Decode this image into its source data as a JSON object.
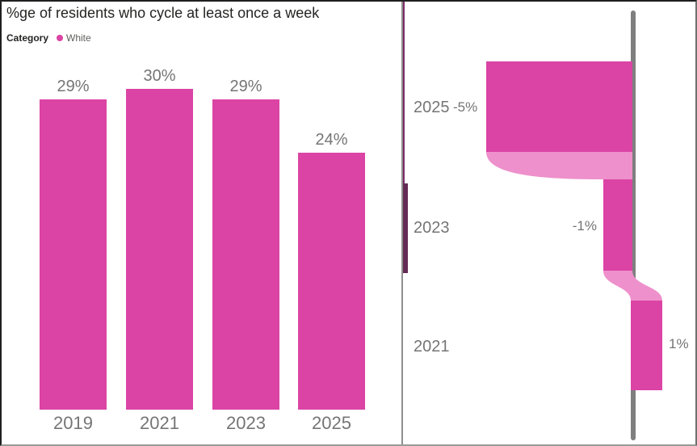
{
  "report": {
    "title": "%ge of residents who cycle at least once a week"
  },
  "colors": {
    "bar": "#DB44A4",
    "ribbon": "#EE90CB",
    "axis_line": "#7F7F7F",
    "label_gray": "#757575",
    "title_text": "#252423",
    "legend_item_text": "#605E5C",
    "overlap_positive": "#652A55",
    "overlap_negative": "#7C2C66",
    "divider": "#8F8F8F"
  },
  "chart_data": [
    {
      "type": "bar",
      "title": "%ge of residents who cycle at least once a week",
      "legend": {
        "field": "Category",
        "entries": [
          "White"
        ],
        "position": "top-left"
      },
      "categories": [
        "2019",
        "2021",
        "2023",
        "2025"
      ],
      "values": [
        29,
        30,
        29,
        24
      ],
      "data_labels": [
        "29%",
        "30%",
        "29%",
        "24%"
      ],
      "xlabel": "",
      "ylabel": "",
      "ylim": [
        0,
        30
      ],
      "grid": false,
      "bar_color": "#DB44A4"
    },
    {
      "type": "waterfall",
      "subtype": "year-over-year-change-flow",
      "orientation": "vertical-axis-zero-line",
      "baseline": 0,
      "items": [
        {
          "year": "2025",
          "delta": -5,
          "label": "-5%"
        },
        {
          "year": "2023",
          "delta": -1,
          "label": "-1%"
        },
        {
          "year": "2021",
          "delta": 1,
          "label": "1%"
        }
      ],
      "axis": {
        "value": 0,
        "style": "gray-vertical-line"
      },
      "legend_position": "none"
    }
  ]
}
